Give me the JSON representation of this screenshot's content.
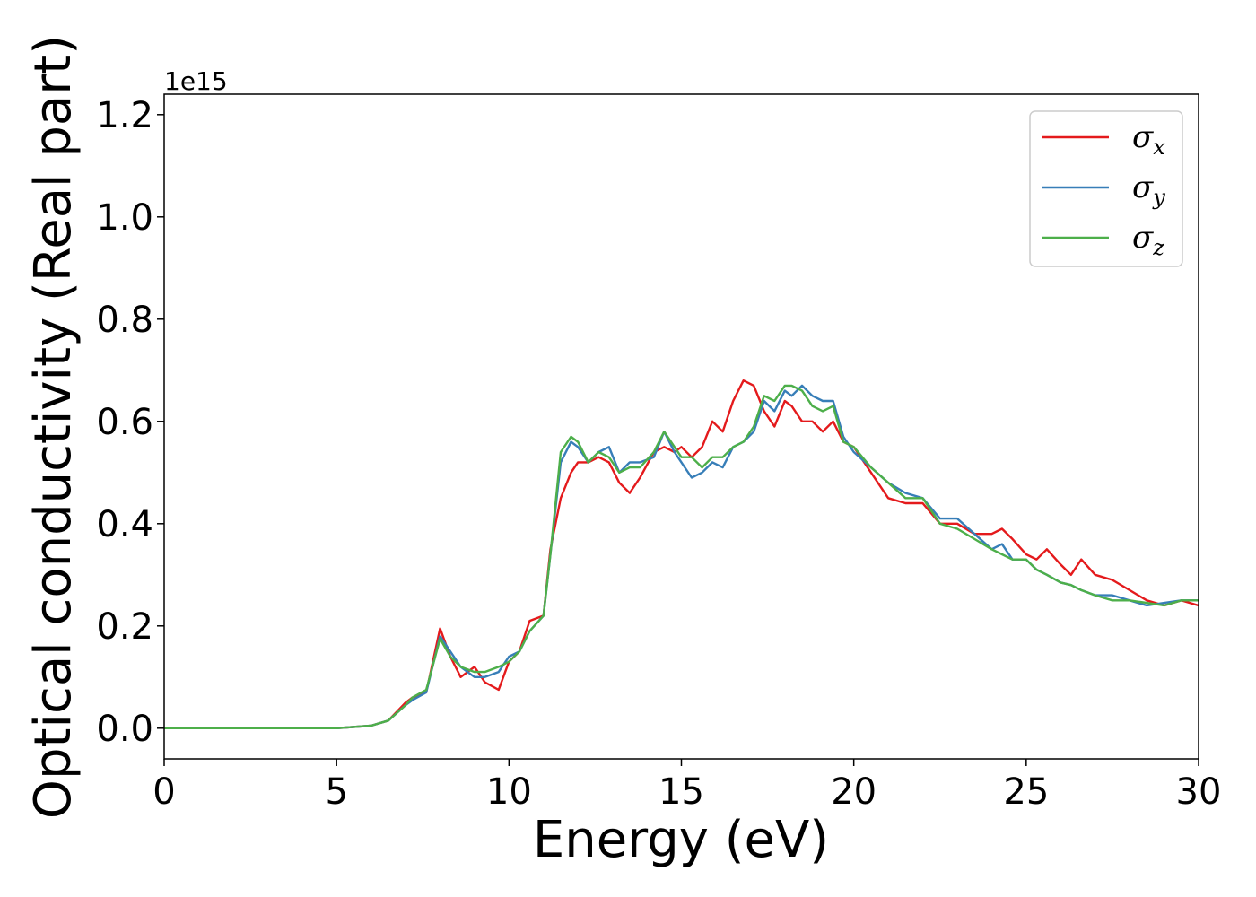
{
  "chart_data": {
    "type": "line",
    "xlabel": "Energy (eV)",
    "ylabel": "Optical conductivity (Real part)",
    "y_offset_label": "1e15",
    "xlim": [
      0,
      30
    ],
    "ylim": [
      -0.06,
      1.24
    ],
    "x_ticks": [
      0,
      5,
      10,
      15,
      20,
      25,
      30
    ],
    "x_tick_labels": [
      "0",
      "5",
      "10",
      "15",
      "20",
      "25",
      "30"
    ],
    "y_ticks": [
      0.0,
      0.2,
      0.4,
      0.6,
      0.8,
      1.0,
      1.2
    ],
    "y_tick_labels": [
      "0.0",
      "0.2",
      "0.4",
      "0.6",
      "0.8",
      "1.0",
      "1.2"
    ],
    "grid": false,
    "legend_position": "top-right",
    "series": [
      {
        "name": "σx",
        "symbol": "σ",
        "subscript": "x",
        "color": "#e41a1c",
        "x": [
          0,
          5,
          6.0,
          6.5,
          7.0,
          7.2,
          7.6,
          8.0,
          8.3,
          8.6,
          9.0,
          9.3,
          9.7,
          10.0,
          10.3,
          10.6,
          11.0,
          11.2,
          11.5,
          11.8,
          12.0,
          12.3,
          12.6,
          12.9,
          13.2,
          13.5,
          13.8,
          14.2,
          14.5,
          14.8,
          15.0,
          15.3,
          15.6,
          15.9,
          16.2,
          16.5,
          16.8,
          17.1,
          17.4,
          17.7,
          18.0,
          18.2,
          18.5,
          18.8,
          19.1,
          19.4,
          19.7,
          20.0,
          20.5,
          21.0,
          21.5,
          22.0,
          22.5,
          23.0,
          23.5,
          24.0,
          24.3,
          24.6,
          25.0,
          25.3,
          25.6,
          26.0,
          26.3,
          26.6,
          27.0,
          27.5,
          28.0,
          28.5,
          29.0,
          29.5,
          30.0
        ],
        "y": [
          0.0,
          0.0,
          0.005,
          0.015,
          0.05,
          0.06,
          0.07,
          0.195,
          0.14,
          0.1,
          0.12,
          0.09,
          0.075,
          0.13,
          0.15,
          0.21,
          0.22,
          0.35,
          0.45,
          0.5,
          0.52,
          0.52,
          0.53,
          0.52,
          0.48,
          0.46,
          0.49,
          0.54,
          0.55,
          0.54,
          0.55,
          0.53,
          0.55,
          0.6,
          0.58,
          0.64,
          0.68,
          0.67,
          0.62,
          0.59,
          0.64,
          0.63,
          0.6,
          0.6,
          0.58,
          0.6,
          0.56,
          0.55,
          0.5,
          0.45,
          0.44,
          0.44,
          0.4,
          0.4,
          0.38,
          0.38,
          0.39,
          0.37,
          0.34,
          0.33,
          0.35,
          0.32,
          0.3,
          0.33,
          0.3,
          0.29,
          0.27,
          0.25,
          0.24,
          0.25,
          0.24
        ]
      },
      {
        "name": "σy",
        "symbol": "σ",
        "subscript": "y",
        "color": "#377eb8",
        "x": [
          0,
          5,
          6.0,
          6.5,
          7.0,
          7.2,
          7.6,
          8.0,
          8.3,
          8.6,
          9.0,
          9.3,
          9.7,
          10.0,
          10.3,
          10.6,
          11.0,
          11.2,
          11.5,
          11.8,
          12.0,
          12.3,
          12.6,
          12.9,
          13.2,
          13.5,
          13.8,
          14.2,
          14.5,
          14.8,
          15.0,
          15.3,
          15.6,
          15.9,
          16.2,
          16.5,
          16.8,
          17.1,
          17.4,
          17.7,
          18.0,
          18.2,
          18.5,
          18.8,
          19.1,
          19.4,
          19.7,
          20.0,
          20.5,
          21.0,
          21.5,
          22.0,
          22.5,
          23.0,
          23.5,
          24.0,
          24.3,
          24.6,
          25.0,
          25.3,
          25.6,
          26.0,
          26.3,
          26.6,
          27.0,
          27.5,
          28.0,
          28.5,
          29.0,
          29.5,
          30.0
        ],
        "y": [
          0.0,
          0.0,
          0.005,
          0.015,
          0.045,
          0.055,
          0.07,
          0.18,
          0.15,
          0.12,
          0.1,
          0.1,
          0.11,
          0.14,
          0.15,
          0.19,
          0.22,
          0.34,
          0.52,
          0.56,
          0.55,
          0.52,
          0.54,
          0.55,
          0.5,
          0.52,
          0.52,
          0.53,
          0.58,
          0.54,
          0.52,
          0.49,
          0.5,
          0.52,
          0.51,
          0.55,
          0.56,
          0.58,
          0.64,
          0.62,
          0.66,
          0.65,
          0.67,
          0.65,
          0.64,
          0.64,
          0.57,
          0.54,
          0.51,
          0.48,
          0.46,
          0.45,
          0.41,
          0.41,
          0.38,
          0.35,
          0.36,
          0.33,
          0.33,
          0.31,
          0.3,
          0.285,
          0.28,
          0.27,
          0.26,
          0.26,
          0.25,
          0.24,
          0.245,
          0.25,
          0.25
        ]
      },
      {
        "name": "σz",
        "symbol": "σ",
        "subscript": "z",
        "color": "#4daf4a",
        "x": [
          0,
          5,
          6.0,
          6.5,
          7.0,
          7.2,
          7.6,
          8.0,
          8.3,
          8.6,
          9.0,
          9.3,
          9.7,
          10.0,
          10.3,
          10.6,
          11.0,
          11.2,
          11.5,
          11.8,
          12.0,
          12.3,
          12.6,
          12.9,
          13.2,
          13.5,
          13.8,
          14.2,
          14.5,
          14.8,
          15.0,
          15.3,
          15.6,
          15.9,
          16.2,
          16.5,
          16.8,
          17.1,
          17.4,
          17.7,
          18.0,
          18.2,
          18.5,
          18.8,
          19.1,
          19.4,
          19.7,
          20.0,
          20.5,
          21.0,
          21.5,
          22.0,
          22.5,
          23.0,
          23.5,
          24.0,
          24.3,
          24.6,
          25.0,
          25.3,
          25.6,
          26.0,
          26.3,
          26.6,
          27.0,
          27.5,
          28.0,
          28.5,
          29.0,
          29.5,
          30.0
        ],
        "y": [
          0.0,
          0.0,
          0.005,
          0.015,
          0.045,
          0.06,
          0.075,
          0.175,
          0.14,
          0.12,
          0.11,
          0.11,
          0.12,
          0.13,
          0.15,
          0.19,
          0.22,
          0.34,
          0.54,
          0.57,
          0.56,
          0.52,
          0.54,
          0.53,
          0.5,
          0.51,
          0.51,
          0.54,
          0.58,
          0.55,
          0.53,
          0.53,
          0.51,
          0.53,
          0.53,
          0.55,
          0.56,
          0.59,
          0.65,
          0.64,
          0.67,
          0.67,
          0.66,
          0.63,
          0.62,
          0.63,
          0.56,
          0.55,
          0.51,
          0.48,
          0.45,
          0.45,
          0.4,
          0.39,
          0.37,
          0.35,
          0.34,
          0.33,
          0.33,
          0.31,
          0.3,
          0.285,
          0.28,
          0.27,
          0.26,
          0.25,
          0.25,
          0.245,
          0.24,
          0.25,
          0.25
        ]
      }
    ]
  }
}
